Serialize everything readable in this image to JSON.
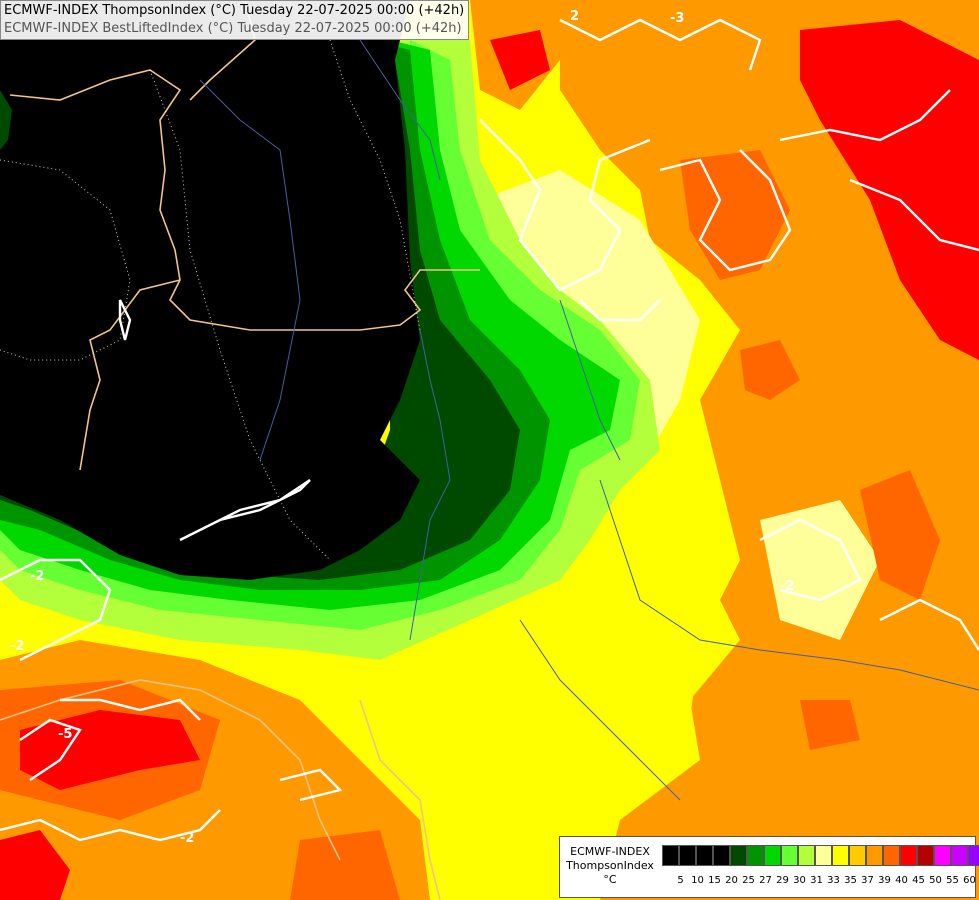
{
  "title": {
    "line1": "ECMWF-INDEX ThompsonIndex (°C) Tuesday 22-07-2025 00:00 (+42h)",
    "line2": "ECMWF-INDEX BestLiftedIndex (°C) Tuesday 22-07-2025 00:00 (+42h)"
  },
  "legend": {
    "model": "ECMWF-INDEX",
    "variable": "ThompsonIndex",
    "unit": "°C",
    "ticks": [
      "5",
      "10",
      "15",
      "20",
      "25",
      "27",
      "29",
      "30",
      "31",
      "33",
      "35",
      "37",
      "39",
      "40",
      "45",
      "50",
      "55",
      "60"
    ],
    "colors": [
      "#000000",
      "#000000",
      "#000000",
      "#000000",
      "#004a00",
      "#009400",
      "#00d800",
      "#66ff33",
      "#b4ff3c",
      "#ffff99",
      "#ffff00",
      "#ffcc00",
      "#ff9900",
      "#ff6600",
      "#ff0000",
      "#b40000",
      "#ff00ff",
      "#cc00ff",
      "#9900ff",
      "#6600ff",
      "#0000ff"
    ]
  },
  "contour_labels": [
    "2",
    "-3",
    "-2",
    "-2",
    "-2",
    "-5",
    "-2"
  ],
  "colors": {
    "black_region": "#000000",
    "dark_green": "#004a00",
    "green": "#009400",
    "bright_green": "#00d800",
    "lime": "#66ff33",
    "yellow_green": "#b4ff3c",
    "pale_yellow": "#ffff99",
    "yellow": "#ffff00",
    "gold": "#ffcc00",
    "orange": "#ff9900",
    "dark_orange": "#ff6600",
    "red": "#ff0000",
    "dark_red": "#b40000"
  }
}
